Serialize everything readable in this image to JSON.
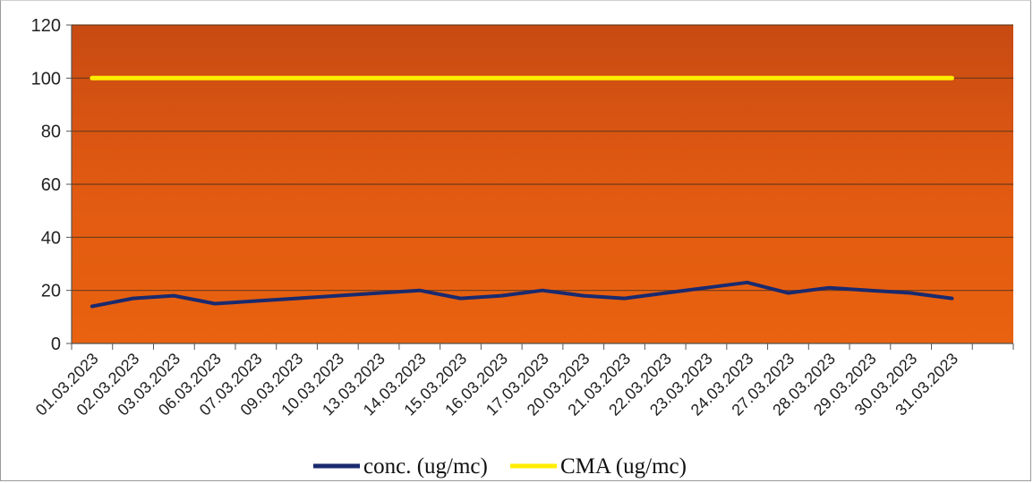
{
  "chart_data": {
    "type": "line",
    "categories": [
      "01.03.2023",
      "02.03.2023",
      "03.03.2023",
      "06.03.2023",
      "07.03.2023",
      "09.03.2023",
      "10.03.2023",
      "13.03.2023",
      "14.03.2023",
      "15.03.2023",
      "16.03.2023",
      "17.03.2023",
      "20.03.2023",
      "21.03.2023",
      "22.03.2023",
      "23.03.2023",
      "24.03.2023",
      "27.03.2023",
      "28.03.2023",
      "29.03.2023",
      "30.03.2023",
      "31.03.2023"
    ],
    "series": [
      {
        "name": "conc. (ug/mc)",
        "color": "#1a2a6e",
        "values": [
          14,
          17,
          18,
          15,
          16,
          17,
          18,
          19,
          20,
          17,
          18,
          20,
          18,
          17,
          19,
          21,
          23,
          19,
          21,
          20,
          19,
          17
        ]
      },
      {
        "name": "CMA (ug/mc)",
        "color": "#ffee00",
        "values": [
          100,
          100,
          100,
          100,
          100,
          100,
          100,
          100,
          100,
          100,
          100,
          100,
          100,
          100,
          100,
          100,
          100,
          100,
          100,
          100,
          100,
          100
        ]
      }
    ],
    "yticks": [
      "0",
      "20",
      "40",
      "60",
      "80",
      "100",
      "120"
    ],
    "ylim": [
      0,
      120
    ],
    "grid": true,
    "legend_position": "bottom",
    "plot_background": "#e05a10",
    "gridline_color": "#6a3a1a"
  }
}
